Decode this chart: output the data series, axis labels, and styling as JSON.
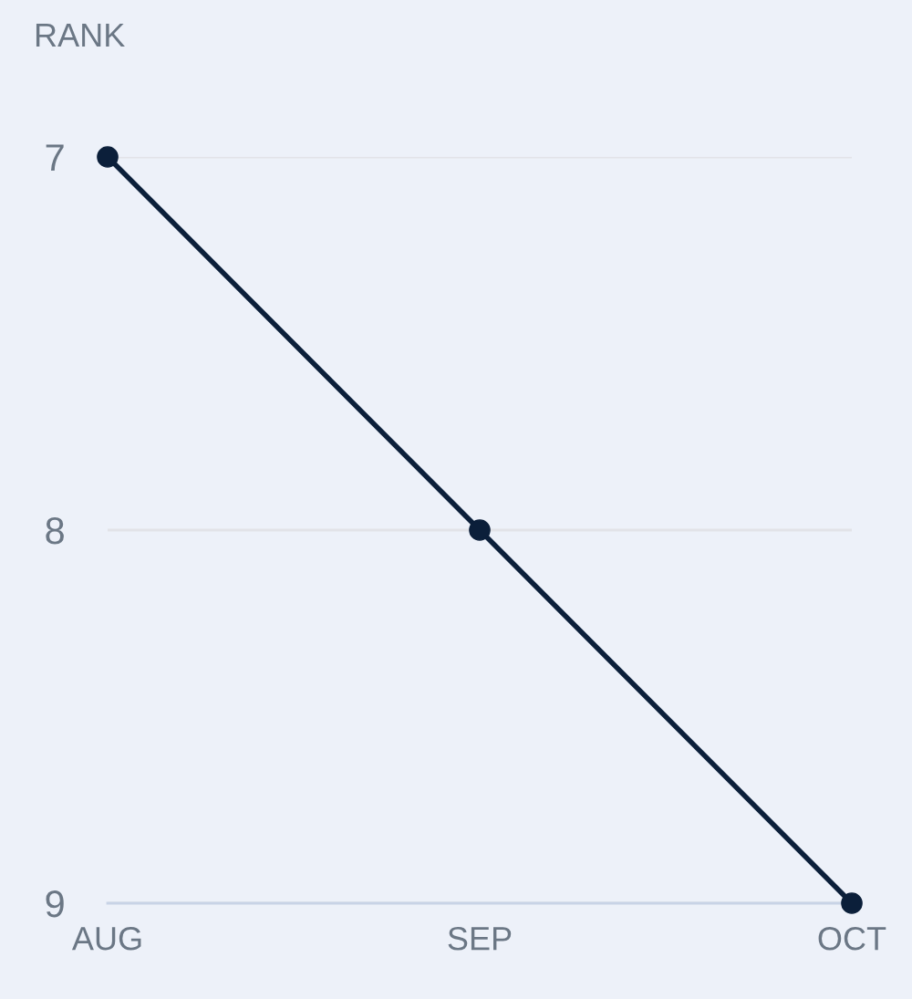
{
  "chart_data": {
    "type": "line",
    "ylabel": "RANK",
    "categories": [
      "AUG",
      "SEP",
      "OCT"
    ],
    "series": [
      {
        "color": "#0b1f3a",
        "values": [
          7,
          8,
          9
        ]
      }
    ],
    "ylim": [
      9,
      7
    ],
    "yticks": [
      7,
      8,
      9
    ],
    "grid": "y",
    "marker": "circle",
    "line_style": "solid",
    "legend": false
  }
}
